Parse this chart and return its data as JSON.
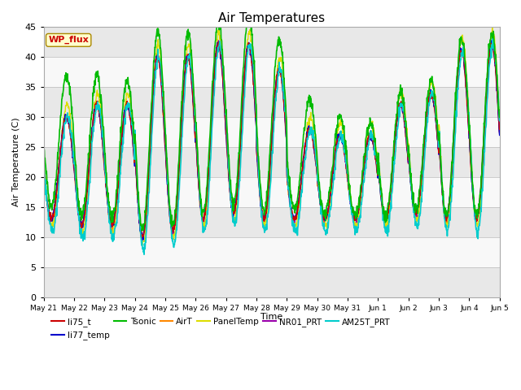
{
  "title": "Air Temperatures",
  "xlabel": "Time",
  "ylabel": "Air Temperature (C)",
  "ylim": [
    0,
    45
  ],
  "yticks": [
    0,
    5,
    10,
    15,
    20,
    25,
    30,
    35,
    40,
    45
  ],
  "legend_label": "WP_flux",
  "series": {
    "li75_t": {
      "color": "#cc0000",
      "lw": 1.0
    },
    "li77_temp": {
      "color": "#0000cc",
      "lw": 1.0
    },
    "Tsonic": {
      "color": "#00bb00",
      "lw": 1.2
    },
    "AirT": {
      "color": "#ff8800",
      "lw": 1.0
    },
    "PanelTemp": {
      "color": "#dddd00",
      "lw": 1.0
    },
    "NR01_PRT": {
      "color": "#9900aa",
      "lw": 1.0
    },
    "AM25T_PRT": {
      "color": "#00cccc",
      "lw": 1.2
    }
  },
  "n_days": 15,
  "points_per_day": 96,
  "band_colors": [
    "#e8e8e8",
    "#f8f8f8"
  ],
  "title_fontsize": 11,
  "tick_labels": [
    "May 21",
    "May 22",
    "May 23",
    "May 24",
    "May 25",
    "May 26",
    "May 27",
    "May 28",
    "May 29",
    "May 30",
    "May 31",
    "Jun 1",
    "Jun 2",
    "Jun 3",
    "Jun 4",
    "Jun 5"
  ],
  "day_max": [
    30,
    32,
    32,
    40,
    40,
    42,
    42,
    38,
    28,
    27,
    27,
    32,
    34,
    41,
    42
  ],
  "day_min": [
    13,
    12,
    12,
    10,
    11,
    13,
    14,
    13,
    13,
    13,
    13,
    13,
    14,
    13,
    13
  ],
  "tsonic_offset": [
    7,
    5,
    4,
    4,
    4,
    4,
    5,
    5,
    5,
    3,
    2,
    2,
    2,
    2,
    2
  ]
}
